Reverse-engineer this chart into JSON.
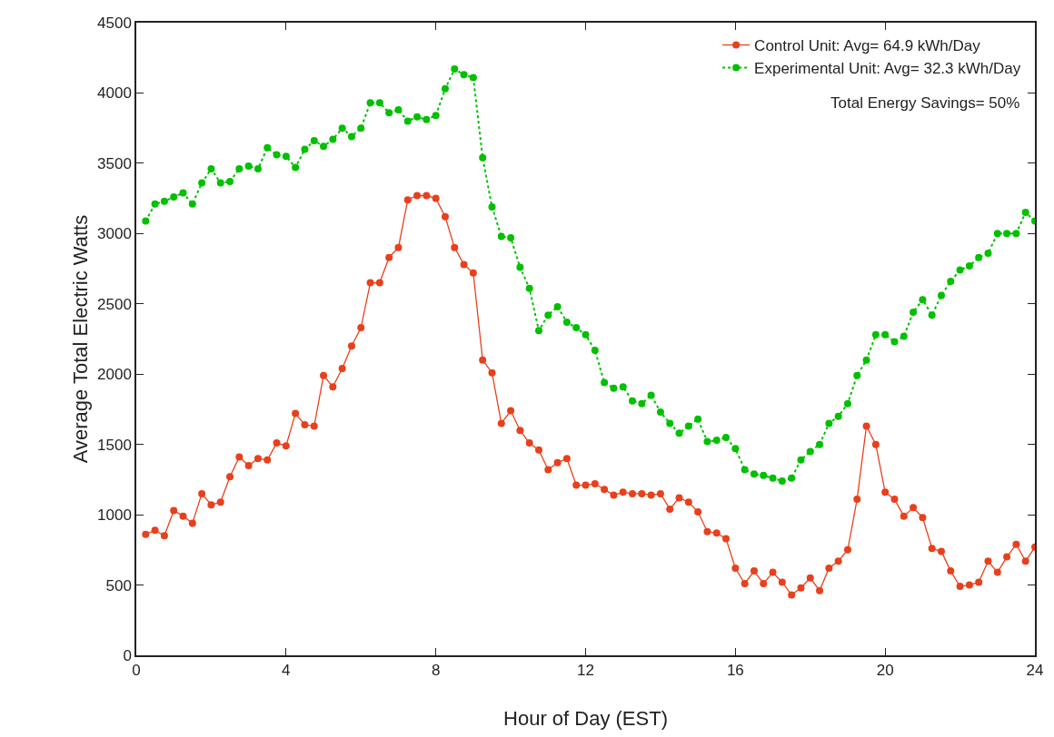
{
  "chart_data": {
    "type": "line",
    "xlabel": "Hour of Day (EST)",
    "ylabel": "Average Total Electric Watts",
    "x": [
      0.25,
      0.5,
      0.75,
      1,
      1.25,
      1.5,
      1.75,
      2,
      2.25,
      2.5,
      2.75,
      3,
      3.25,
      3.5,
      3.75,
      4,
      4.25,
      4.5,
      4.75,
      5,
      5.25,
      5.5,
      5.75,
      6,
      6.25,
      6.5,
      6.75,
      7,
      7.25,
      7.5,
      7.75,
      8,
      8.25,
      8.5,
      8.75,
      9,
      9.25,
      9.5,
      9.75,
      10,
      10.25,
      10.5,
      10.75,
      11,
      11.25,
      11.5,
      11.75,
      12,
      12.25,
      12.5,
      12.75,
      13,
      13.25,
      13.5,
      13.75,
      14,
      14.25,
      14.5,
      14.75,
      15,
      15.25,
      15.5,
      15.75,
      16,
      16.25,
      16.5,
      16.75,
      17,
      17.25,
      17.5,
      17.75,
      18,
      18.25,
      18.5,
      18.75,
      19,
      19.25,
      19.5,
      19.75,
      20,
      20.25,
      20.5,
      20.75,
      21,
      21.25,
      21.5,
      21.75,
      22,
      22.25,
      22.5,
      22.75,
      23,
      23.25,
      23.5,
      23.75,
      24
    ],
    "series": [
      {
        "name": "Control Unit: Avg= 64.9 kWh/Day",
        "color": "#e8401c",
        "line_style": "solid",
        "values": [
          860,
          890,
          850,
          1030,
          990,
          940,
          1150,
          1070,
          1090,
          1270,
          1410,
          1350,
          1400,
          1390,
          1510,
          1490,
          1720,
          1640,
          1630,
          1990,
          1910,
          2040,
          2200,
          2330,
          2650,
          2650,
          2830,
          2900,
          3240,
          3270,
          3270,
          3250,
          3120,
          2900,
          2780,
          2720,
          2100,
          2010,
          1650,
          1740,
          1600,
          1510,
          1460,
          1320,
          1370,
          1400,
          1210,
          1210,
          1220,
          1180,
          1140,
          1160,
          1150,
          1150,
          1140,
          1150,
          1040,
          1120,
          1090,
          1020,
          880,
          870,
          830,
          620,
          510,
          600,
          510,
          590,
          520,
          430,
          480,
          550,
          460,
          620,
          670,
          750,
          1110,
          1630,
          1500,
          1160,
          1110,
          990,
          1050,
          980,
          760,
          740,
          600,
          490,
          500,
          520,
          670,
          590,
          700,
          790,
          670,
          770
        ]
      },
      {
        "name": "Experimental Unit: Avg= 32.3 kWh/Day",
        "color": "#00c000",
        "line_style": "dotted",
        "values": [
          3090,
          3210,
          3230,
          3260,
          3290,
          3210,
          3360,
          3460,
          3360,
          3370,
          3460,
          3480,
          3460,
          3610,
          3560,
          3550,
          3470,
          3600,
          3660,
          3620,
          3670,
          3750,
          3690,
          3750,
          3930,
          3930,
          3860,
          3880,
          3800,
          3830,
          3810,
          3840,
          4030,
          4170,
          4130,
          4110,
          3540,
          3190,
          2980,
          2970,
          2760,
          2610,
          2310,
          2420,
          2480,
          2370,
          2330,
          2280,
          2170,
          1940,
          1900,
          1910,
          1810,
          1790,
          1850,
          1730,
          1650,
          1580,
          1630,
          1680,
          1520,
          1530,
          1550,
          1470,
          1320,
          1290,
          1280,
          1260,
          1240,
          1260,
          1390,
          1450,
          1500,
          1650,
          1700,
          1790,
          1990,
          2100,
          2280,
          2280,
          2230,
          2270,
          2440,
          2530,
          2420,
          2560,
          2660,
          2740,
          2770,
          2830,
          2860,
          3000,
          3000,
          3000,
          3150,
          3090
        ]
      }
    ],
    "xlim": [
      0,
      24
    ],
    "xticks": [
      0,
      4,
      8,
      12,
      16,
      20,
      24
    ],
    "ylim": [
      0,
      4500
    ],
    "yticks": [
      0,
      500,
      1000,
      1500,
      2000,
      2500,
      3000,
      3500,
      4000,
      4500
    ],
    "grid": false,
    "legend": "top right",
    "marker": "circle",
    "annotations": [
      "Total Energy Savings= 50%"
    ]
  }
}
